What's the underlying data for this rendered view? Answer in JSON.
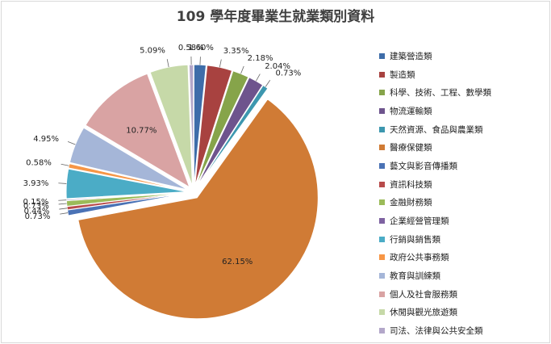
{
  "chart_data": {
    "type": "pie",
    "title": "109 學年度畢業生就業類別資料",
    "slices": [
      {
        "name": "建築營造類",
        "value": 1.6,
        "label": "1.60%",
        "color": "#3e6da9"
      },
      {
        "name": "製造類",
        "value": 3.35,
        "label": "3.35%",
        "color": "#a84240"
      },
      {
        "name": "科學、技術、工程、數學類",
        "value": 2.18,
        "label": "2.18%",
        "color": "#86a44a"
      },
      {
        "name": "物流運輸類",
        "value": 2.04,
        "label": "2.04%",
        "color": "#6e548d"
      },
      {
        "name": "天然資源、食品與農業類",
        "value": 0.73,
        "label": "0.73%",
        "color": "#3d97af"
      },
      {
        "name": "醫療保健類",
        "value": 62.15,
        "label": "62.15%",
        "color": "#d07b35"
      },
      {
        "name": "藝文與影音傳播類",
        "value": 0.73,
        "label": "0.73%",
        "color": "#4a72b5"
      },
      {
        "name": "資訊科技類",
        "value": 0.44,
        "label": "0.44%",
        "color": "#b84b4b"
      },
      {
        "name": "金融財務類",
        "value": 0.73,
        "label": "0.73%",
        "color": "#9bbb59"
      },
      {
        "name": "企業經營管理類",
        "value": 0.15,
        "label": "0.15%",
        "color": "#7e62a1"
      },
      {
        "name": "行銷與銷售類",
        "value": 3.93,
        "label": "3.93%",
        "color": "#4bacc6"
      },
      {
        "name": "政府公共事務類",
        "value": 0.58,
        "label": "0.58%",
        "color": "#f79646"
      },
      {
        "name": "教育與訓練類",
        "value": 4.95,
        "label": "4.95%",
        "color": "#a5b6d8"
      },
      {
        "name": "個人及社會服務類",
        "value": 10.77,
        "label": "10.77%",
        "color": "#d9a3a3"
      },
      {
        "name": "休閒與觀光旅遊類",
        "value": 5.09,
        "label": "5.09%",
        "color": "#c6d9a8"
      },
      {
        "name": "司法、法律與公共安全類",
        "value": 0.58,
        "label": "0.58%",
        "color": "#b3a7c9"
      }
    ],
    "legend_position": "right"
  }
}
